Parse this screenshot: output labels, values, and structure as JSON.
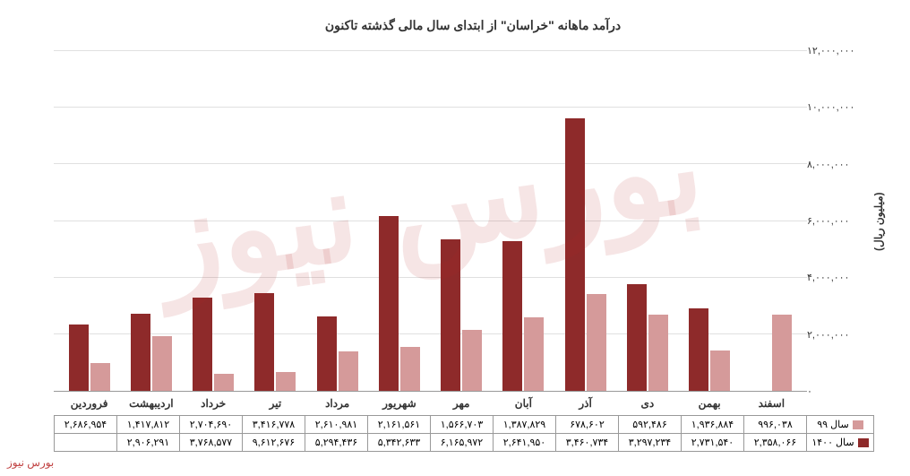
{
  "title": "درآمد ماهانه \"خراسان\" از ابتدای سال مالی گذشته تاکنون",
  "y_axis_label": "(میلیون ریال)",
  "watermark_text": "بورس نیوز",
  "chart": {
    "type": "bar",
    "ylim": [
      0,
      12000000
    ],
    "ytick_step": 2000000,
    "yticks": [
      "۰",
      "۲,۰۰۰,۰۰۰",
      "۴,۰۰۰,۰۰۰",
      "۶,۰۰۰,۰۰۰",
      "۸,۰۰۰,۰۰۰",
      "۱۰,۰۰۰,۰۰۰",
      "۱۲,۰۰۰,۰۰۰"
    ],
    "grid_color": "#e0e0e0",
    "background_color": "#ffffff",
    "categories": [
      "فروردین",
      "اردیبهشت",
      "خرداد",
      "تیر",
      "مرداد",
      "شهریور",
      "مهر",
      "آبان",
      "آذر",
      "دی",
      "بهمن",
      "اسفند"
    ],
    "series": [
      {
        "name": "سال ۹۹",
        "color": "#d59a9a",
        "values": [
          996038,
          1936884,
          592486,
          678602,
          1387829,
          1566703,
          2161561,
          2610981,
          3416778,
          2704690,
          1417812,
          2686954
        ],
        "labels": [
          "۹۹۶,۰۳۸",
          "۱,۹۳۶,۸۸۴",
          "۵۹۲,۴۸۶",
          "۶۷۸,۶۰۲",
          "۱,۳۸۷,۸۲۹",
          "۱,۵۶۶,۷۰۳",
          "۲,۱۶۱,۵۶۱",
          "۲,۶۱۰,۹۸۱",
          "۳,۴۱۶,۷۷۸",
          "۲,۷۰۴,۶۹۰",
          "۱,۴۱۷,۸۱۲",
          "۲,۶۸۶,۹۵۴"
        ]
      },
      {
        "name": "سال ۱۴۰۰",
        "color": "#8e2a2a",
        "values": [
          2358066,
          2731540,
          3297234,
          3460734,
          2641950,
          6165972,
          5342633,
          5294436,
          9612676,
          3768577,
          2906291,
          null
        ],
        "labels": [
          "۲,۳۵۸,۰۶۶",
          "۲,۷۳۱,۵۴۰",
          "۳,۲۹۷,۲۳۴",
          "۳,۴۶۰,۷۳۴",
          "۲,۶۴۱,۹۵۰",
          "۶,۱۶۵,۹۷۲",
          "۵,۳۴۲,۶۳۳",
          "۵,۲۹۴,۴۳۶",
          "۹,۶۱۲,۶۷۶",
          "۳,۷۶۸,۵۷۷",
          "۲,۹۰۶,۲۹۱",
          ""
        ]
      }
    ]
  }
}
